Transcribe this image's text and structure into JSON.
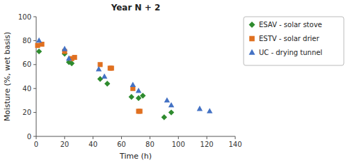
{
  "chart_data": {
    "type": "scatter",
    "title": "Year N + 2",
    "xlabel": "Time (h)",
    "ylabel": "Moisture (%, wet basis)",
    "xlim": [
      0,
      140
    ],
    "ylim": [
      0,
      100
    ],
    "xticks": [
      0,
      20,
      40,
      60,
      80,
      100,
      120,
      140
    ],
    "yticks": [
      0,
      20,
      40,
      60,
      80,
      100
    ],
    "grid": false,
    "legend": "right",
    "series": [
      {
        "name": "ESAV - solar stove",
        "color": "#2e8b2e",
        "marker": "diamond",
        "x": [
          2,
          20,
          23,
          25,
          45,
          50,
          67,
          72,
          75,
          90,
          95
        ],
        "values": [
          71,
          69,
          62,
          61,
          48,
          44,
          33,
          32,
          34,
          16,
          20
        ]
      },
      {
        "name": "ESTV - solar drier",
        "color": "#e07020",
        "marker": "square",
        "x": [
          1,
          4,
          20,
          25,
          27,
          45,
          52,
          53,
          68,
          72,
          73
        ],
        "values": [
          76,
          77,
          71,
          65,
          66,
          60,
          57,
          57,
          40,
          21,
          21
        ]
      },
      {
        "name": "UC - drying tunnel",
        "color": "#4472c4",
        "marker": "triangle",
        "x": [
          2,
          20,
          23,
          44,
          48,
          68,
          72,
          92,
          95,
          115,
          122
        ],
        "values": [
          80,
          73,
          65,
          56,
          50,
          43,
          38,
          30,
          26,
          23,
          21
        ]
      }
    ]
  }
}
